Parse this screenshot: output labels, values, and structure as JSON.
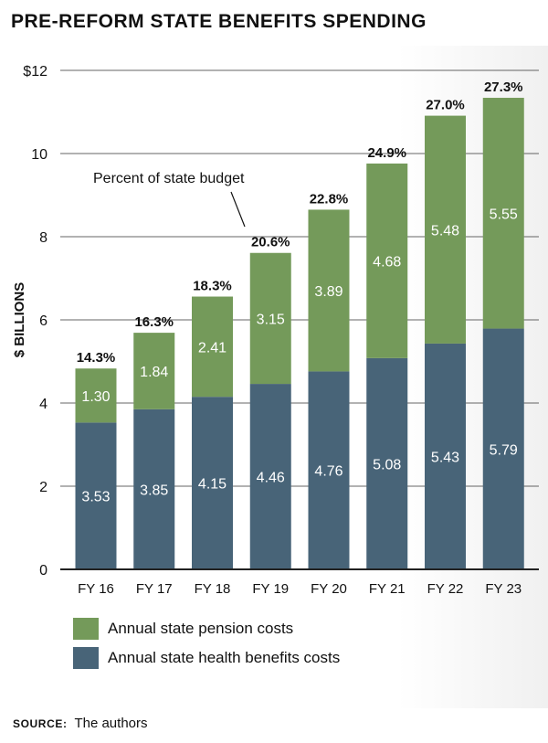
{
  "title": "PRE-REFORM STATE BENEFITS SPENDING",
  "source": {
    "label": "SOURCE:",
    "text": "The authors"
  },
  "colors": {
    "pension": "#749a5a",
    "health": "#486478",
    "text": "#111111",
    "axis": "#222222",
    "grid": "#333333",
    "bar_text": "#ffffff"
  },
  "annotation": "Percent of state budget",
  "legend": [
    {
      "label": "Annual state pension costs",
      "color": "#749a5a"
    },
    {
      "label": "Annual state health benefits costs",
      "color": "#486478"
    }
  ],
  "chart_data": {
    "type": "bar",
    "stacked": true,
    "title": "PRE-REFORM STATE BENEFITS SPENDING",
    "xlabel": "",
    "ylabel": "$ BILLIONS",
    "ylim": [
      0,
      12
    ],
    "yticks": [
      0,
      2,
      4,
      6,
      8,
      10,
      12
    ],
    "ytick_labels": [
      "0",
      "2",
      "4",
      "6",
      "8",
      "10",
      "$12"
    ],
    "grid": true,
    "legend_position": "bottom",
    "categories": [
      "FY 16",
      "FY 17",
      "FY 18",
      "FY 19",
      "FY 20",
      "FY 21",
      "FY 22",
      "FY 23"
    ],
    "series": [
      {
        "name": "Annual state health benefits costs",
        "values": [
          3.53,
          3.85,
          4.15,
          4.46,
          4.76,
          5.08,
          5.43,
          5.79
        ],
        "labels": [
          "3.53",
          "3.85",
          "4.15",
          "4.46",
          "4.76",
          "5.08",
          "5.43",
          "5.79"
        ]
      },
      {
        "name": "Annual state pension costs",
        "values": [
          1.3,
          1.84,
          2.41,
          3.15,
          3.89,
          4.68,
          5.48,
          5.55
        ],
        "labels": [
          "1.30",
          "1.84",
          "2.41",
          "3.15",
          "3.89",
          "4.68",
          "5.48",
          "5.55"
        ]
      }
    ],
    "percent_of_budget": [
      "14.3%",
      "16.3%",
      "18.3%",
      "20.6%",
      "22.8%",
      "24.9%",
      "27.0%",
      "27.3%"
    ]
  }
}
